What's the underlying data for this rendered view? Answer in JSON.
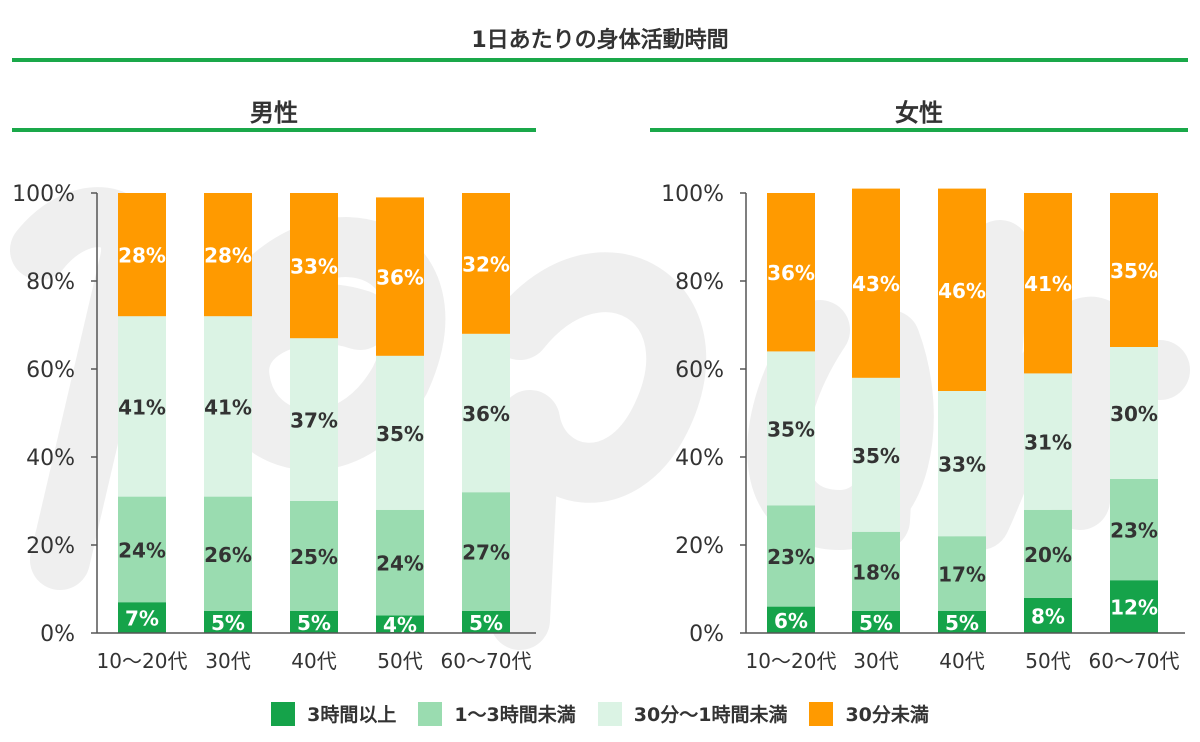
{
  "title": "1日あたりの身体活動時間",
  "colors": {
    "rule": "#1aa84a",
    "s1": "#15a34a",
    "s2": "#9adcb0",
    "s3": "#dbf3e4",
    "s4": "#ff9a00",
    "text_dark": "#333333",
    "text_light": "#ffffff",
    "watermark": "#efefef"
  },
  "chart_data": [
    {
      "type": "bar",
      "stacked": true,
      "title": "男性",
      "categories": [
        "10〜20代",
        "30代",
        "40代",
        "50代",
        "60〜70代"
      ],
      "ylim": [
        0,
        100
      ],
      "yticks": [
        "0%",
        "20%",
        "40%",
        "60%",
        "80%",
        "100%"
      ],
      "series": [
        {
          "name": "3時間以上",
          "values": [
            7,
            5,
            5,
            4,
            5
          ]
        },
        {
          "name": "1〜3時間未満",
          "values": [
            24,
            26,
            25,
            24,
            27
          ]
        },
        {
          "name": "30分〜1時間未満",
          "values": [
            41,
            41,
            37,
            35,
            36
          ]
        },
        {
          "name": "30分未満",
          "values": [
            28,
            28,
            33,
            36,
            32
          ]
        }
      ],
      "labels": [
        [
          "7%",
          "5%",
          "5%",
          "4%",
          "5%"
        ],
        [
          "24%",
          "26%",
          "25%",
          "24%",
          "27%"
        ],
        [
          "41%",
          "41%",
          "37%",
          "35%",
          "36%"
        ],
        [
          "28%",
          "28%",
          "33%",
          "36%",
          "32%"
        ]
      ]
    },
    {
      "type": "bar",
      "stacked": true,
      "title": "女性",
      "categories": [
        "10〜20代",
        "30代",
        "40代",
        "50代",
        "60〜70代"
      ],
      "ylim": [
        0,
        100
      ],
      "yticks": [
        "0%",
        "20%",
        "40%",
        "60%",
        "80%",
        "100%"
      ],
      "series": [
        {
          "name": "3時間以上",
          "values": [
            6,
            5,
            5,
            8,
            12
          ]
        },
        {
          "name": "1〜3時間未満",
          "values": [
            23,
            18,
            17,
            20,
            23
          ]
        },
        {
          "name": "30分〜1時間未満",
          "values": [
            35,
            35,
            33,
            31,
            30
          ]
        },
        {
          "name": "30分未満",
          "values": [
            36,
            43,
            46,
            41,
            35
          ]
        }
      ],
      "labels": [
        [
          "6%",
          "5%",
          "5%",
          "8%",
          "12%"
        ],
        [
          "23%",
          "18%",
          "17%",
          "20%",
          "23%"
        ],
        [
          "35%",
          "35%",
          "33%",
          "31%",
          "30%"
        ],
        [
          "36%",
          "43%",
          "46%",
          "41%",
          "35%"
        ]
      ]
    }
  ],
  "legend": [
    {
      "label": "3時間以上"
    },
    {
      "label": "1〜3時間未満"
    },
    {
      "label": "30分〜1時間未満"
    },
    {
      "label": "30分未満"
    }
  ]
}
